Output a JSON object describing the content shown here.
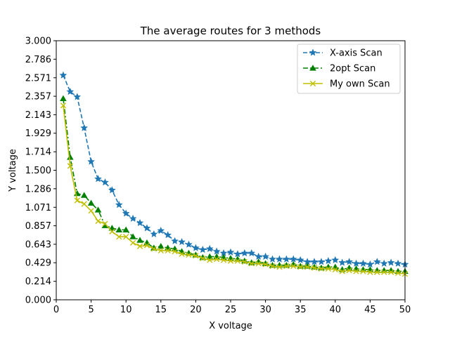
{
  "chart_data": {
    "type": "line",
    "title": "The average routes for 3 methods",
    "xlabel": "X voltage",
    "ylabel": "Y voltage",
    "xlim": [
      0,
      50
    ],
    "ylim": [
      0,
      3
    ],
    "xticks": [
      0,
      5,
      10,
      15,
      20,
      25,
      30,
      35,
      40,
      45,
      50
    ],
    "yticks": [
      "0.000",
      "0.214",
      "0.429",
      "0.643",
      "0.857",
      "1.071",
      "1.286",
      "1.500",
      "1.714",
      "1.929",
      "2.143",
      "2.357",
      "2.571",
      "2.786",
      "3.000"
    ],
    "grid": false,
    "legend_position": "top-right",
    "x": [
      1,
      2,
      3,
      4,
      5,
      6,
      7,
      8,
      9,
      10,
      11,
      12,
      13,
      14,
      15,
      16,
      17,
      18,
      19,
      20,
      21,
      22,
      23,
      24,
      25,
      26,
      27,
      28,
      29,
      30,
      31,
      32,
      33,
      34,
      35,
      36,
      37,
      38,
      39,
      40,
      41,
      42,
      43,
      44,
      45,
      46,
      47,
      48,
      49,
      50
    ],
    "series": [
      {
        "name": "X-axis Scan",
        "color": "#1f77b4",
        "line": "dashed",
        "marker": "star",
        "values": [
          2.6,
          2.41,
          2.35,
          1.99,
          1.6,
          1.4,
          1.36,
          1.27,
          1.1,
          1.0,
          0.94,
          0.89,
          0.83,
          0.76,
          0.8,
          0.75,
          0.68,
          0.67,
          0.64,
          0.6,
          0.58,
          0.59,
          0.56,
          0.54,
          0.55,
          0.53,
          0.54,
          0.54,
          0.5,
          0.5,
          0.47,
          0.47,
          0.47,
          0.47,
          0.46,
          0.44,
          0.44,
          0.44,
          0.45,
          0.46,
          0.43,
          0.44,
          0.42,
          0.42,
          0.41,
          0.44,
          0.42,
          0.43,
          0.42,
          0.41
        ]
      },
      {
        "name": "2opt Scan",
        "color": "#008000",
        "line": "dashdot",
        "marker": "triangle",
        "values": [
          2.33,
          1.65,
          1.23,
          1.21,
          1.12,
          1.04,
          0.86,
          0.83,
          0.81,
          0.81,
          0.73,
          0.69,
          0.66,
          0.6,
          0.62,
          0.6,
          0.59,
          0.56,
          0.54,
          0.52,
          0.49,
          0.5,
          0.5,
          0.49,
          0.48,
          0.47,
          0.45,
          0.43,
          0.44,
          0.42,
          0.4,
          0.4,
          0.4,
          0.41,
          0.39,
          0.39,
          0.38,
          0.37,
          0.38,
          0.38,
          0.35,
          0.37,
          0.36,
          0.35,
          0.35,
          0.34,
          0.34,
          0.34,
          0.33,
          0.33
        ]
      },
      {
        "name": "My own Scan",
        "color": "#bfbf00",
        "line": "solid",
        "marker": "x",
        "values": [
          2.25,
          1.55,
          1.15,
          1.11,
          1.03,
          0.91,
          0.88,
          0.79,
          0.73,
          0.73,
          0.66,
          0.62,
          0.63,
          0.59,
          0.57,
          0.57,
          0.56,
          0.53,
          0.52,
          0.51,
          0.48,
          0.46,
          0.47,
          0.46,
          0.45,
          0.45,
          0.44,
          0.42,
          0.42,
          0.41,
          0.39,
          0.38,
          0.39,
          0.39,
          0.38,
          0.38,
          0.37,
          0.36,
          0.36,
          0.35,
          0.33,
          0.34,
          0.33,
          0.33,
          0.32,
          0.32,
          0.32,
          0.32,
          0.31,
          0.3
        ]
      }
    ]
  }
}
